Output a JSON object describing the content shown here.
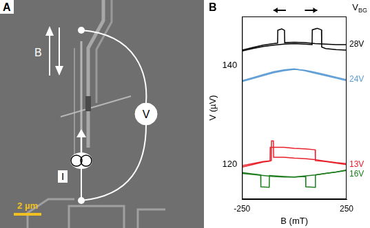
{
  "panel_a": {
    "label": "A",
    "field_label": "B",
    "voltmeter_label": "V",
    "current_source_label": "I",
    "scale_bar": "2 µm"
  },
  "chart_data": {
    "panel_label": "B",
    "type": "line",
    "x_label": "B (mT)",
    "y_label": "V (µV)",
    "legend_title": "VBG",
    "xlim": [
      -250,
      250
    ],
    "xticks": [
      -250,
      250
    ],
    "ylim": [
      113,
      150
    ],
    "yticks": [
      120,
      140
    ],
    "grid": false,
    "series": [
      {
        "name": "28V",
        "color": "#000000",
        "sweeps": [
          {
            "x": [
              -250,
              -200,
              -150,
              -100,
              -80,
              -79,
              -60,
              -47,
              -46,
              0,
              50,
              100,
              150,
              200,
              250
            ],
            "values": [
              143.2,
              143.7,
              144.2,
              144.5,
              144.6,
              147.2,
              147.5,
              147.2,
              144.7,
              144.8,
              144.7,
              144.5,
              144.4,
              144.3,
              144.3
            ]
          },
          {
            "x": [
              -250,
              -200,
              -150,
              -100,
              -50,
              0,
              50,
              85,
              86,
              110,
              130,
              131,
              150,
              200,
              250
            ],
            "values": [
              143.0,
              143.5,
              143.9,
              144.2,
              144.4,
              144.5,
              144.4,
              144.3,
              147.3,
              147.6,
              147.3,
              143.8,
              143.5,
              143.3,
              143.2
            ]
          }
        ]
      },
      {
        "name": "24V",
        "color": "#5b9bd5",
        "sweeps": [
          {
            "x": [
              -250,
              -200,
              -150,
              -100,
              -50,
              0,
              50,
              100,
              150,
              200,
              250
            ],
            "values": [
              136.8,
              137.4,
              138.0,
              138.6,
              139.0,
              139.3,
              139.1,
              138.7,
              138.2,
              137.7,
              137.2
            ]
          },
          {
            "x": [
              -250,
              -200,
              -150,
              -100,
              -50,
              0,
              50,
              100,
              150,
              200,
              250
            ],
            "values": [
              137.0,
              137.6,
              138.2,
              138.8,
              139.2,
              139.4,
              139.0,
              138.5,
              138.0,
              137.5,
              137.0
            ]
          }
        ]
      },
      {
        "name": "13V",
        "color": "#e8202a",
        "sweeps": [
          {
            "x": [
              -250,
              -200,
              -150,
              -116,
              -115,
              -50,
              0,
              50,
              100,
              101,
              150,
              200,
              250
            ],
            "values": [
              119.5,
              120.0,
              120.5,
              120.7,
              123.5,
              123.5,
              123.3,
              123.2,
              123.0,
              120.8,
              120.6,
              120.3,
              120.0
            ]
          },
          {
            "x": [
              -250,
              -200,
              -150,
              -110,
              -109,
              -100,
              -99,
              -50,
              0,
              50,
              100,
              150,
              200,
              250
            ],
            "values": [
              119.8,
              120.2,
              120.6,
              120.8,
              124.8,
              124.8,
              121.5,
              121.5,
              121.3,
              121.2,
              121.0,
              120.7,
              120.4,
              120.2
            ]
          }
        ]
      },
      {
        "name": "16V",
        "color": "#1e7d1e",
        "sweeps": [
          {
            "x": [
              -250,
              -200,
              -161,
              -160,
              -120,
              -119,
              -50,
              0,
              50,
              100,
              150,
              200,
              250
            ],
            "values": [
              118.4,
              118.1,
              117.9,
              115.5,
              115.4,
              117.8,
              117.6,
              117.5,
              117.7,
              117.9,
              118.2,
              118.5,
              118.8
            ]
          },
          {
            "x": [
              -250,
              -200,
              -150,
              -100,
              -50,
              0,
              54,
              55,
              100,
              101,
              150,
              200,
              250
            ],
            "values": [
              118.2,
              118.0,
              117.8,
              117.6,
              117.5,
              117.5,
              117.6,
              115.5,
              115.4,
              117.9,
              118.2,
              118.5,
              118.9
            ]
          }
        ]
      }
    ]
  }
}
